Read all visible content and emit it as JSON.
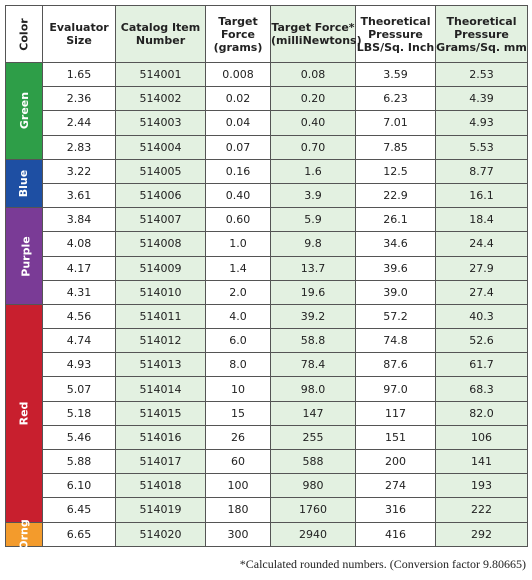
{
  "table": {
    "columns": [
      "Color",
      "Evaluator Size",
      "Catalog Item Number",
      "Target Force (grams)",
      "Target Force* (milliNewtons)",
      "Theoretical Pressure LBS/Sq. Inch",
      "Theoretical Pressure Grams/Sq. mm"
    ],
    "groups": [
      {
        "label": "Green",
        "color": "#2e9e48",
        "rows": [
          [
            "1.65",
            "514001",
            "0.008",
            "0.08",
            "3.59",
            "2.53"
          ],
          [
            "2.36",
            "514002",
            "0.02",
            "0.20",
            "6.23",
            "4.39"
          ],
          [
            "2.44",
            "514003",
            "0.04",
            "0.40",
            "7.01",
            "4.93"
          ],
          [
            "2.83",
            "514004",
            "0.07",
            "0.70",
            "7.85",
            "5.53"
          ]
        ]
      },
      {
        "label": "Blue",
        "color": "#1e4fa3",
        "rows": [
          [
            "3.22",
            "514005",
            "0.16",
            "1.6",
            "12.5",
            "8.77"
          ],
          [
            "3.61",
            "514006",
            "0.40",
            "3.9",
            "22.9",
            "16.1"
          ]
        ]
      },
      {
        "label": "Purple",
        "color": "#7a3b96",
        "rows": [
          [
            "3.84",
            "514007",
            "0.60",
            "5.9",
            "26.1",
            "18.4"
          ],
          [
            "4.08",
            "514008",
            "1.0",
            "9.8",
            "34.6",
            "24.4"
          ],
          [
            "4.17",
            "514009",
            "1.4",
            "13.7",
            "39.6",
            "27.9"
          ],
          [
            "4.31",
            "514010",
            "2.0",
            "19.6",
            "39.0",
            "27.4"
          ]
        ]
      },
      {
        "label": "Red",
        "color": "#c81f2e",
        "rows": [
          [
            "4.56",
            "514011",
            "4.0",
            "39.2",
            "57.2",
            "40.3"
          ],
          [
            "4.74",
            "514012",
            "6.0",
            "58.8",
            "74.8",
            "52.6"
          ],
          [
            "4.93",
            "514013",
            "8.0",
            "78.4",
            "87.6",
            "61.7"
          ],
          [
            "5.07",
            "514014",
            "10",
            "98.0",
            "97.0",
            "68.3"
          ],
          [
            "5.18",
            "514015",
            "15",
            "147",
            "117",
            "82.0"
          ],
          [
            "5.46",
            "514016",
            "26",
            "255",
            "151",
            "106"
          ],
          [
            "5.88",
            "514017",
            "60",
            "588",
            "200",
            "141"
          ],
          [
            "6.10",
            "514018",
            "100",
            "980",
            "274",
            "193"
          ],
          [
            "6.45",
            "514019",
            "180",
            "1760",
            "316",
            "222"
          ]
        ]
      },
      {
        "label": "Orng",
        "color": "#f39b2c",
        "rows": [
          [
            "6.65",
            "514020",
            "300",
            "2940",
            "416",
            "292"
          ]
        ]
      }
    ],
    "footnote": "*Calculated rounded numbers. (Conversion factor 9.80665)"
  }
}
